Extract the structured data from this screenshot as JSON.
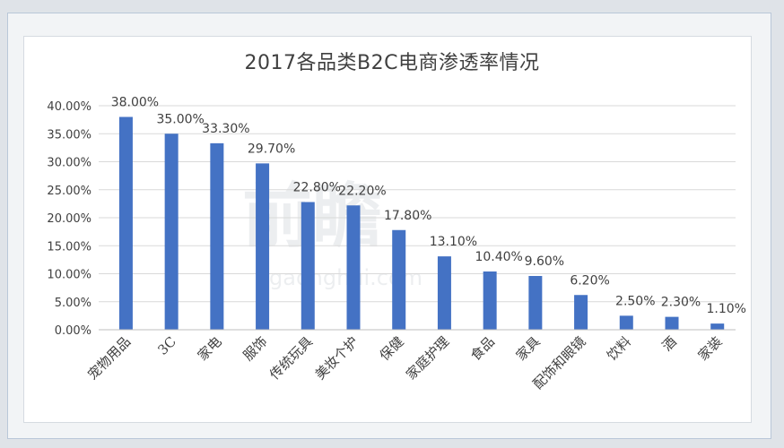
{
  "chart_data": {
    "type": "bar",
    "title": "2017各品类B2C电商渗透率情况",
    "categories": [
      "宠物用品",
      "3C",
      "家电",
      "服饰",
      "传统玩具",
      "美妆个护",
      "保健",
      "家庭护理",
      "食品",
      "家具",
      "配饰和眼镜",
      "饮料",
      "酒",
      "家装"
    ],
    "values": [
      38.0,
      35.0,
      33.3,
      29.7,
      22.8,
      22.2,
      17.8,
      13.1,
      10.4,
      9.6,
      6.2,
      2.5,
      2.3,
      1.1
    ],
    "data_labels": [
      "38.00%",
      "35.00%",
      "33.30%",
      "29.70%",
      "22.80%",
      "22.20%",
      "17.80%",
      "13.10%",
      "10.40%",
      "9.60%",
      "6.20%",
      "2.50%",
      "2.30%",
      "1.10%"
    ],
    "y_ticks": [
      "0.00%",
      "5.00%",
      "10.00%",
      "15.00%",
      "20.00%",
      "25.00%",
      "30.00%",
      "35.00%",
      "40.00%"
    ],
    "ylim": [
      0,
      40
    ],
    "grid": true,
    "bar_color": "#4472c4",
    "gridline_color": "#d9d9d9",
    "watermark": "前瞻 gaonghui.com"
  }
}
